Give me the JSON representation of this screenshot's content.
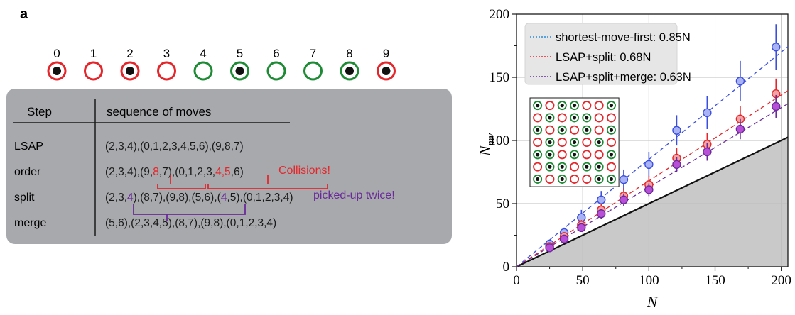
{
  "panel_a": {
    "label": "a",
    "sites": [
      {
        "index": "0",
        "ring": "red",
        "atom": true
      },
      {
        "index": "1",
        "ring": "red",
        "atom": false
      },
      {
        "index": "2",
        "ring": "red",
        "atom": true
      },
      {
        "index": "3",
        "ring": "red",
        "atom": false
      },
      {
        "index": "4",
        "ring": "green",
        "atom": false
      },
      {
        "index": "5",
        "ring": "green",
        "atom": true
      },
      {
        "index": "6",
        "ring": "green",
        "atom": false
      },
      {
        "index": "7",
        "ring": "green",
        "atom": false
      },
      {
        "index": "8",
        "ring": "green",
        "atom": true
      },
      {
        "index": "9",
        "ring": "red",
        "atom": true
      }
    ],
    "table": {
      "header_step": "Step",
      "header_moves": "sequence of moves",
      "rows": [
        {
          "step": "LSAP",
          "segments": [
            {
              "text": "(2,3,4),(0,1,2,3,4,5,6),(9,8,7)",
              "color": "black"
            }
          ]
        },
        {
          "step": "order",
          "segments": [
            {
              "text": "(2,3,4),(9,",
              "color": "black"
            },
            {
              "text": "8",
              "color": "red"
            },
            {
              "text": ",7),(0,1,2,3,",
              "color": "black"
            },
            {
              "text": "4,5",
              "color": "red"
            },
            {
              "text": ",6)",
              "color": "black"
            }
          ]
        },
        {
          "step": "split",
          "segments": [
            {
              "text": "(2,3,",
              "color": "black"
            },
            {
              "text": "4",
              "color": "purple"
            },
            {
              "text": "),(8,7),(9,8),(5,6),(",
              "color": "black"
            },
            {
              "text": "4",
              "color": "purple"
            },
            {
              "text": ",5),(0,1,2,3,4)",
              "color": "black"
            }
          ]
        },
        {
          "step": "merge",
          "segments": [
            {
              "text": "(5,6),(2,3,4,5),(8,7),(9,8),(0,1,2,3,4)",
              "color": "black"
            }
          ]
        }
      ],
      "note_collisions": "Collisions!",
      "note_picked": "picked-up twice!"
    }
  },
  "colors": {
    "red": "#e4262b",
    "green": "#1d8a34",
    "purple": "#6a2a9a",
    "blue": "#3a4fe0",
    "table_bg": "#a7a9ac"
  },
  "chart_data": {
    "type": "scatter",
    "panel_label": "b",
    "xlabel": "N",
    "ylabel": "N",
    "ylabel_subscript": "mv",
    "xlim": [
      0,
      205
    ],
    "ylim": [
      0,
      200
    ],
    "xticks": [
      0,
      50,
      100,
      150,
      200
    ],
    "yticks": [
      0,
      50,
      100,
      150,
      200
    ],
    "grid": true,
    "legend_position": "top-left",
    "x": [
      25,
      36,
      49,
      64,
      81,
      100,
      121,
      144,
      169,
      196
    ],
    "series": [
      {
        "name": "shortest-move-first: 0.85N",
        "color": "#2a8ad6",
        "marker": "#a9b2f2",
        "edge": "#3a4fe0",
        "slope": 0.85,
        "values": [
          18,
          27,
          39,
          53,
          69,
          81,
          108,
          122,
          147,
          174
        ],
        "errors": [
          3,
          4,
          6,
          7,
          8,
          10,
          12,
          13,
          16,
          18
        ]
      },
      {
        "name": "LSAP+split: 0.68N",
        "color": "#e4262b",
        "marker": "#f4a4a4",
        "edge": "#e4262b",
        "slope": 0.68,
        "values": [
          16,
          24,
          33,
          45,
          56,
          65,
          86,
          97,
          117,
          137
        ],
        "errors": [
          2,
          3,
          4,
          5,
          6,
          7,
          8,
          9,
          10,
          12
        ]
      },
      {
        "name": "LSAP+split+merge: 0.63N",
        "color": "#6a2a9a",
        "marker": "#b84fd6",
        "edge": "#6a2a9a",
        "slope": 0.63,
        "values": [
          15,
          22,
          31,
          42,
          53,
          61,
          81,
          91,
          109,
          127
        ],
        "errors": [
          2,
          3,
          3,
          4,
          5,
          5,
          6,
          7,
          8,
          9
        ]
      }
    ],
    "bound_slope": 0.5,
    "inset": {
      "rows": 7,
      "cols": 7,
      "ring": [
        [
          "g",
          "r",
          "g",
          "g",
          "r",
          "r",
          "g"
        ],
        [
          "r",
          "g",
          "r",
          "g",
          "g",
          "r",
          "r"
        ],
        [
          "g",
          "r",
          "g",
          "r",
          "g",
          "r",
          "g"
        ],
        [
          "r",
          "g",
          "r",
          "g",
          "r",
          "g",
          "r"
        ],
        [
          "g",
          "g",
          "r",
          "g",
          "r",
          "r",
          "g"
        ],
        [
          "r",
          "g",
          "g",
          "r",
          "g",
          "g",
          "r"
        ],
        [
          "g",
          "r",
          "g",
          "r",
          "r",
          "g",
          "g"
        ]
      ],
      "atom": [
        [
          1,
          0,
          1,
          1,
          0,
          0,
          1
        ],
        [
          0,
          1,
          0,
          1,
          1,
          0,
          0
        ],
        [
          1,
          0,
          1,
          0,
          1,
          0,
          1
        ],
        [
          0,
          1,
          0,
          1,
          0,
          1,
          0
        ],
        [
          1,
          1,
          0,
          1,
          0,
          0,
          1
        ],
        [
          0,
          1,
          1,
          0,
          1,
          1,
          0
        ],
        [
          1,
          0,
          1,
          0,
          0,
          1,
          1
        ]
      ]
    }
  }
}
